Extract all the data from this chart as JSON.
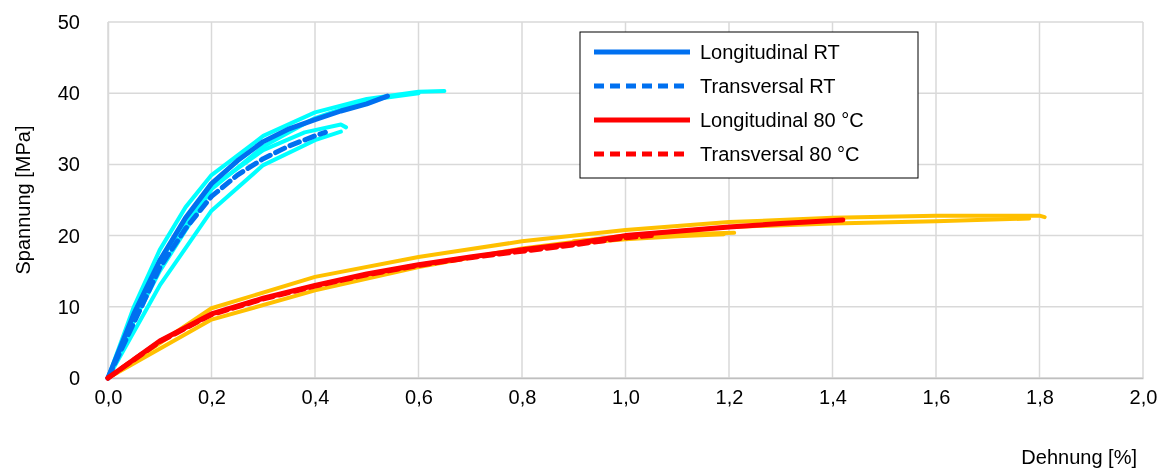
{
  "chart_data": {
    "type": "line",
    "xlabel": "Dehnung [%]",
    "ylabel": "Spannung [MPa]",
    "xlim": [
      0,
      2
    ],
    "ylim": [
      0,
      50
    ],
    "xticks": [
      {
        "value": 0,
        "label": "0,0"
      },
      {
        "value": 0.2,
        "label": "0,2"
      },
      {
        "value": 0.4,
        "label": "0,4"
      },
      {
        "value": 0.6,
        "label": "0,6"
      },
      {
        "value": 0.8,
        "label": "0,8"
      },
      {
        "value": 1,
        "label": "1,0"
      },
      {
        "value": 1.2,
        "label": "1,2"
      },
      {
        "value": 1.4,
        "label": "1,4"
      },
      {
        "value": 1.6,
        "label": "1,6"
      },
      {
        "value": 1.8,
        "label": "1,8"
      },
      {
        "value": 2,
        "label": "2,0"
      }
    ],
    "yticks": [
      0,
      10,
      20,
      30,
      40,
      50
    ],
    "grid": true,
    "legend": "top right",
    "marker": "none",
    "series": [
      {
        "color": "#00ffff",
        "line_style": "solid",
        "x": [
          0,
          0.05,
          0.1,
          0.15,
          0.2,
          0.3,
          0.4,
          0.5,
          0.6,
          0.65
        ],
        "values": [
          0,
          10,
          18,
          24,
          28.5,
          34,
          37.3,
          39.2,
          40.2,
          40.3
        ]
      },
      {
        "color": "#00ffff",
        "line_style": "solid",
        "x": [
          0,
          0.05,
          0.1,
          0.2,
          0.3,
          0.4,
          0.5,
          0.6
        ],
        "values": [
          0,
          8,
          15,
          26.5,
          32.5,
          36.5,
          39,
          40
        ]
      },
      {
        "color": "#00ffff",
        "line_style": "solid",
        "x": [
          0,
          0.1,
          0.2,
          0.3,
          0.38,
          0.45,
          0.46
        ],
        "values": [
          0,
          16.5,
          26.8,
          32,
          34.5,
          35.6,
          35.2
        ]
      },
      {
        "color": "#00ffff",
        "line_style": "solid",
        "x": [
          0,
          0.1,
          0.2,
          0.3,
          0.4,
          0.45
        ],
        "values": [
          0,
          13,
          23.5,
          29.9,
          33.4,
          34.6
        ]
      },
      {
        "color": "#ffc000",
        "line_style": "solid",
        "x": [
          0,
          0.2,
          0.4,
          0.6,
          0.8,
          1,
          1.2,
          1.4,
          1.6,
          1.8,
          1.81
        ],
        "values": [
          0,
          9.8,
          14.2,
          17,
          19.2,
          20.8,
          21.9,
          22.5,
          22.8,
          22.8,
          22.6
        ]
      },
      {
        "color": "#ffc000",
        "line_style": "solid",
        "x": [
          0,
          0.2,
          0.4,
          0.6,
          0.8,
          1,
          1.2,
          1.4,
          1.6,
          1.78
        ],
        "values": [
          0,
          8.2,
          12.3,
          15.6,
          18.2,
          20,
          21.2,
          21.7,
          22,
          22.4
        ]
      },
      {
        "color": "#ffc000",
        "line_style": "solid",
        "x": [
          0.9,
          1,
          1.1,
          1.21
        ],
        "values": [
          19.2,
          19.8,
          20.2,
          20.4
        ]
      },
      {
        "color": "#ffc000",
        "line_style": "solid",
        "x": [
          0.9,
          1,
          1.1,
          1.19
        ],
        "values": [
          18.9,
          19.5,
          19.9,
          20.2
        ]
      },
      {
        "name": "Longitudinal RT",
        "color": "#0070f0",
        "line_style": "solid",
        "x": [
          0,
          0.05,
          0.1,
          0.15,
          0.2,
          0.25,
          0.3,
          0.35,
          0.4,
          0.45,
          0.5,
          0.54
        ],
        "values": [
          0,
          9,
          16.5,
          22.5,
          27.3,
          30.5,
          33.2,
          35,
          36.3,
          37.5,
          38.5,
          39.6
        ]
      },
      {
        "name": "Transversal RT",
        "color": "#0070f0",
        "line_style": "dashed",
        "x": [
          0,
          0.1,
          0.15,
          0.2,
          0.25,
          0.3,
          0.35,
          0.4,
          0.42
        ],
        "values": [
          0,
          15.5,
          21,
          25.5,
          28.5,
          30.8,
          32.6,
          34,
          34.5
        ]
      },
      {
        "name": "Longitudinal 80 °C",
        "color": "#ff0000",
        "line_style": "solid",
        "x": [
          0,
          0.1,
          0.2,
          0.3,
          0.4,
          0.5,
          0.6,
          0.7,
          0.8,
          0.9,
          1,
          1.1,
          1.2,
          1.3,
          1.42
        ],
        "values": [
          0,
          5.2,
          9,
          11.2,
          13,
          14.6,
          15.9,
          17,
          18,
          18.9,
          20,
          20.6,
          21.2,
          21.7,
          22.2
        ]
      },
      {
        "name": "Transversal 80 °C",
        "color": "#ff0000",
        "line_style": "dashed",
        "x": [
          0,
          0.1,
          0.2,
          0.3,
          0.4,
          0.5,
          0.6,
          0.7,
          0.8,
          0.9,
          1,
          1.05
        ],
        "values": [
          0,
          5.1,
          8.9,
          11.1,
          12.9,
          14.5,
          15.8,
          16.9,
          17.8,
          18.7,
          19.7,
          20
        ]
      }
    ]
  }
}
